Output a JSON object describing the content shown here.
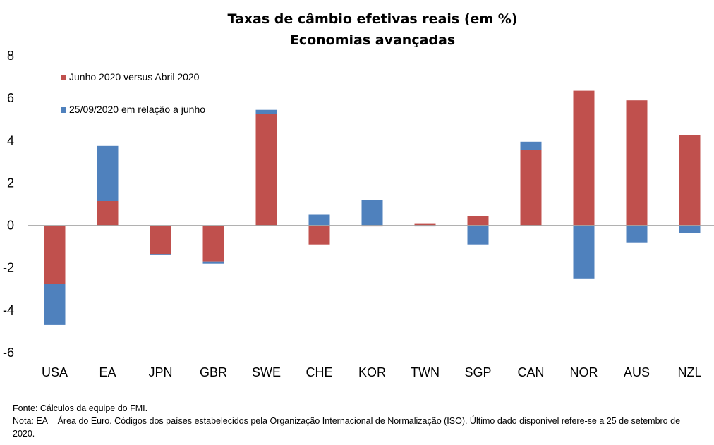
{
  "chart_data": {
    "type": "bar",
    "stacked": true,
    "title": "Taxas de câmbio efetivas reais (em %)",
    "subtitle": "Economias avançadas",
    "categories": [
      "USA",
      "EA",
      "JPN",
      "GBR",
      "SWE",
      "CHE",
      "KOR",
      "TWN",
      "SGP",
      "CAN",
      "NOR",
      "AUS",
      "NZL"
    ],
    "series": [
      {
        "name": "Junho 2020 versus Abril 2020",
        "color": "#C0504D",
        "values": [
          -2.75,
          1.15,
          -1.35,
          -1.7,
          5.25,
          -0.9,
          -0.05,
          0.1,
          0.45,
          3.55,
          6.35,
          5.9,
          4.25
        ]
      },
      {
        "name": "25/09/2020 em relação a junho",
        "color": "#4F81BD",
        "values": [
          -1.95,
          2.6,
          -0.05,
          -0.1,
          0.2,
          0.5,
          1.2,
          -0.05,
          -0.9,
          0.4,
          -2.5,
          -0.8,
          -0.35
        ]
      }
    ],
    "ylim": [
      -6,
      8
    ],
    "yticks": [
      -6,
      -4,
      -2,
      0,
      2,
      4,
      6,
      8
    ],
    "grid": false,
    "legend_position": "top-left"
  },
  "notes": {
    "source": "Fonte: Cálculos da equipe do FMI.",
    "note": "Nota: EA = Área do Euro. Códigos dos países estabelecidos pela Organização Internacional de Normalização (ISO). Último dado disponível refere-se a 25 de setembro de 2020."
  }
}
